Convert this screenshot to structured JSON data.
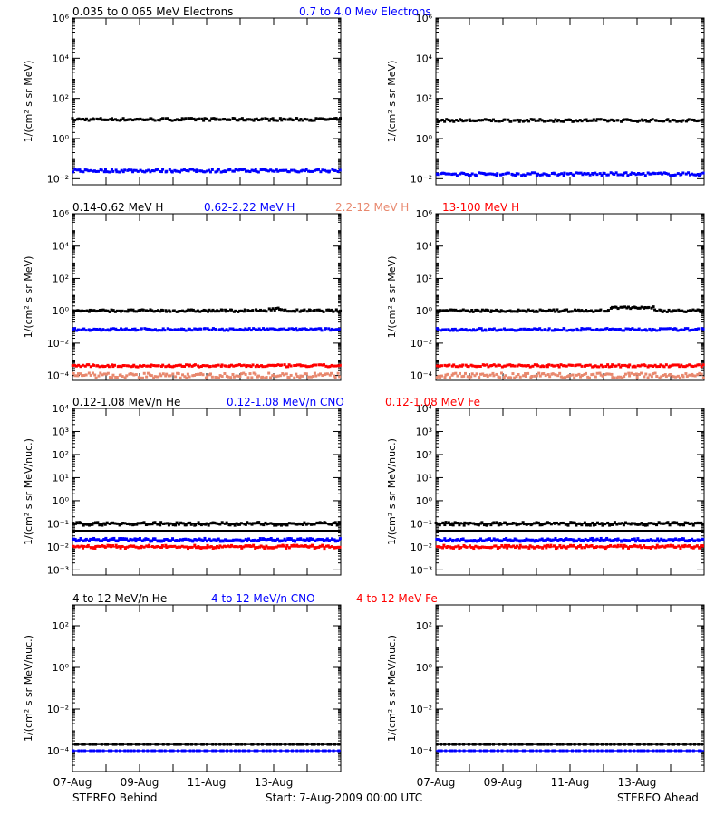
{
  "figure": {
    "left_footer": "STEREO Behind",
    "center_footer": "Start:  7-Aug-2009 00:00 UTC",
    "right_footer": "STEREO Ahead",
    "x_ticks": [
      "07-Aug",
      "09-Aug",
      "11-Aug",
      "13-Aug"
    ]
  },
  "colors": {
    "black": "#000000",
    "blue": "#0000ff",
    "salmon": "#e8886e",
    "red": "#ff0000"
  },
  "chart_data": [
    {
      "type": "scatter",
      "panel_id": "electrons",
      "ylabel": "1/(cm² s sr MeV)",
      "ylog": true,
      "ylim": [
        0.005,
        1000000
      ],
      "yticks": [
        0.01,
        1,
        100,
        10000,
        1000000
      ],
      "ytick_labels": [
        "10⁻²",
        "10⁰",
        "10²",
        "10⁴",
        "10⁶"
      ],
      "xlim_days": [
        0,
        8
      ],
      "series": [
        {
          "name": "0.035 to 0.065 MeV Electrons",
          "color": "#000000",
          "behind": 9,
          "ahead": 8
        },
        {
          "name": "0.7 to 4.0 Mev Electrons",
          "color": "#0000ff",
          "behind": 0.025,
          "ahead": 0.017
        }
      ]
    },
    {
      "type": "scatter",
      "panel_id": "protons",
      "ylabel": "1/(cm² s sr MeV)",
      "ylog": true,
      "ylim": [
        5e-05,
        1000000
      ],
      "yticks": [
        0.0001,
        0.01,
        1,
        100,
        10000,
        1000000
      ],
      "ytick_labels": [
        "10⁻⁴",
        "10⁻²",
        "10⁰",
        "10²",
        "10⁴",
        "10⁶"
      ],
      "xlim_days": [
        0,
        8
      ],
      "series": [
        {
          "name": "0.14-0.62 MeV H",
          "color": "#000000",
          "behind": 1.0,
          "ahead": 1.0
        },
        {
          "name": "0.62-2.22 MeV H",
          "color": "#0000ff",
          "behind": 0.07,
          "ahead": 0.07
        },
        {
          "name": "2.2-12 MeV H",
          "color": "#e8886e",
          "behind": 0.0001,
          "ahead": 0.0001
        },
        {
          "name": "13-100 MeV H",
          "color": "#ff0000",
          "behind": 0.0004,
          "ahead": 0.0004
        }
      ]
    },
    {
      "type": "scatter",
      "panel_id": "ions_low",
      "ylabel": "1/(cm² s sr MeV/nuc.)",
      "ylog": true,
      "ylim": [
        0.0006,
        10000
      ],
      "yticks": [
        0.001,
        0.01,
        0.1,
        1,
        10,
        100,
        1000,
        10000
      ],
      "ytick_labels": [
        "10⁻³",
        "10⁻²",
        "10⁻¹",
        "10⁰",
        "10¹",
        "10²",
        "10³",
        "10⁴"
      ],
      "xlim_days": [
        0,
        8
      ],
      "series": [
        {
          "name": "0.12-1.08 MeV/n He",
          "color": "#000000",
          "behind": 0.1,
          "ahead": 0.1
        },
        {
          "name": "0.12-1.08 MeV/n CNO",
          "color": "#0000ff",
          "behind": 0.02,
          "ahead": 0.02
        },
        {
          "name": "0.12-1.08 MeV Fe",
          "color": "#ff0000",
          "behind": 0.01,
          "ahead": 0.01
        }
      ]
    },
    {
      "type": "scatter",
      "panel_id": "ions_high",
      "ylabel": "1/(cm² s sr MeV/nuc.)",
      "ylog": true,
      "ylim": [
        1e-05,
        1000
      ],
      "yticks": [
        0.0001,
        0.01,
        1,
        100
      ],
      "ytick_labels": [
        "10⁻⁴",
        "10⁻²",
        "10⁰",
        "10²"
      ],
      "xlim_days": [
        0,
        8
      ],
      "series": [
        {
          "name": "4 to 12 MeV/n He",
          "color": "#000000",
          "behind": 0.0002,
          "ahead": 0.0002
        },
        {
          "name": "4 to 12 MeV/n CNO",
          "color": "#0000ff",
          "behind": 0.0001,
          "ahead": 0.0001
        },
        {
          "name": "4 to 12 MeV Fe",
          "color": "#ff0000",
          "behind": null,
          "ahead": null
        }
      ]
    }
  ]
}
